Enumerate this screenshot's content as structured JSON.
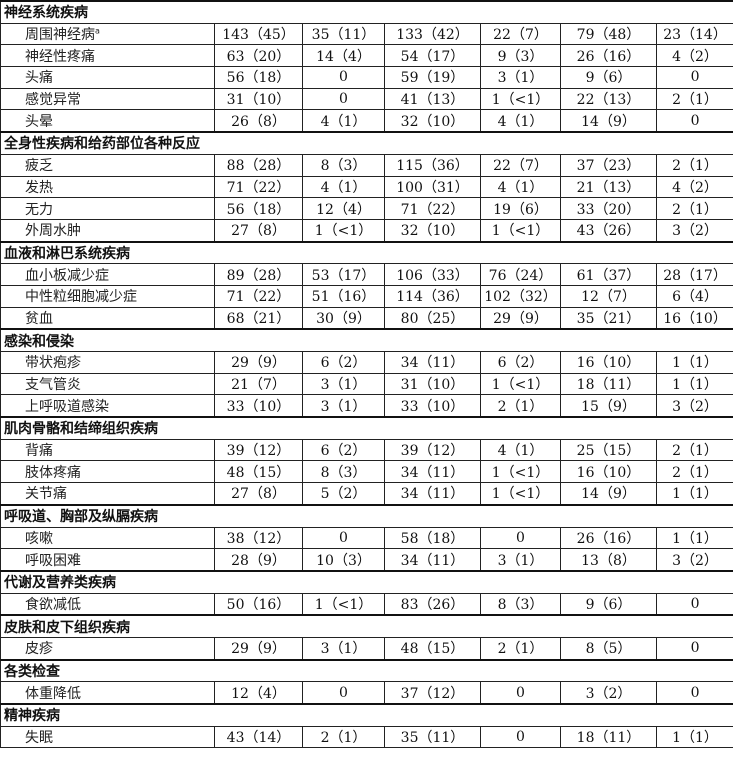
{
  "sections": [
    {
      "title": "神经系统疾病",
      "rows": [
        {
          "label": "周围神经病",
          "footnote": "a",
          "values": [
            "143（45）",
            "35（11）",
            "133（42）",
            "22（7）",
            "79（48）",
            "23（14）"
          ]
        },
        {
          "label": "神经性疼痛",
          "values": [
            "63（20）",
            "14（4）",
            "54（17）",
            "9（3）",
            "26（16）",
            "4（2）"
          ]
        },
        {
          "label": "头痛",
          "values": [
            "56（18）",
            "0",
            "59（19）",
            "3（1）",
            "9（6）",
            "0"
          ]
        },
        {
          "label": "感觉异常",
          "values": [
            "31（10）",
            "0",
            "41（13）",
            "1（<1）",
            "22（13）",
            "2（1）"
          ]
        },
        {
          "label": "头晕",
          "values": [
            "26（8）",
            "4（1）",
            "32（10）",
            "4（1）",
            "14（9）",
            "0"
          ]
        }
      ]
    },
    {
      "title": "全身性疾病和给药部位各种反应",
      "rows": [
        {
          "label": "疲乏",
          "values": [
            "88（28）",
            "8（3）",
            "115（36）",
            "22（7）",
            "37（23）",
            "2（1）"
          ]
        },
        {
          "label": "发热",
          "values": [
            "71（22）",
            "4（1）",
            "100（31）",
            "4（1）",
            "21（13）",
            "4（2）"
          ]
        },
        {
          "label": "无力",
          "values": [
            "56（18）",
            "12（4）",
            "71（22）",
            "19（6）",
            "33（20）",
            "2（1）"
          ]
        },
        {
          "label": "外周水肿",
          "values": [
            "27（8）",
            "1（<1）",
            "32（10）",
            "1（<1）",
            "43（26）",
            "3（2）"
          ]
        }
      ]
    },
    {
      "title": "血液和淋巴系统疾病",
      "rows": [
        {
          "label": "血小板减少症",
          "values": [
            "89（28）",
            "53（17）",
            "106（33）",
            "76（24）",
            "61（37）",
            "28（17）"
          ]
        },
        {
          "label": "中性粒细胞减少症",
          "values": [
            "71（22）",
            "51（16）",
            "114（36）",
            "102（32）",
            "12（7）",
            "6（4）"
          ]
        },
        {
          "label": "贫血",
          "values": [
            "68（21）",
            "30（9）",
            "80（25）",
            "29（9）",
            "35（21）",
            "16（10）"
          ]
        }
      ]
    },
    {
      "title": "感染和侵染",
      "rows": [
        {
          "label": "带状疱疹",
          "values": [
            "29（9）",
            "6（2）",
            "34（11）",
            "6（2）",
            "16（10）",
            "1（1）"
          ]
        },
        {
          "label": "支气管炎",
          "values": [
            "21（7）",
            "3（1）",
            "31（10）",
            "1（<1）",
            "18（11）",
            "1（1）"
          ]
        },
        {
          "label": "上呼吸道感染",
          "values": [
            "33（10）",
            "3（1）",
            "33（10）",
            "2（1）",
            "15（9）",
            "3（2）"
          ]
        }
      ]
    },
    {
      "title": "肌肉骨骼和结缔组织疾病",
      "rows": [
        {
          "label": "背痛",
          "values": [
            "39（12）",
            "6（2）",
            "39（12）",
            "4（1）",
            "25（15）",
            "2（1）"
          ]
        },
        {
          "label": "肢体疼痛",
          "values": [
            "48（15）",
            "8（3）",
            "34（11）",
            "1（<1）",
            "16（10）",
            "2（1）"
          ]
        },
        {
          "label": "关节痛",
          "values": [
            "27（8）",
            "5（2）",
            "34（11）",
            "1（<1）",
            "14（9）",
            "1（1）"
          ]
        }
      ]
    },
    {
      "title": "呼吸道、胸部及纵膈疾病",
      "rows": [
        {
          "label": "咳嗽",
          "values": [
            "38（12）",
            "0",
            "58（18）",
            "0",
            "26（16）",
            "1（1）"
          ]
        },
        {
          "label": "呼吸困难",
          "values": [
            "28（9）",
            "10（3）",
            "34（11）",
            "3（1）",
            "13（8）",
            "3（2）"
          ]
        }
      ]
    },
    {
      "title": "代谢及营养类疾病",
      "rows": [
        {
          "label": "食欲减低",
          "values": [
            "50（16）",
            "1（<1）",
            "83（26）",
            "8（3）",
            "9（6）",
            "0"
          ]
        }
      ]
    },
    {
      "title": "皮肤和皮下组织疾病",
      "rows": [
        {
          "label": "皮疹",
          "values": [
            "29（9）",
            "3（1）",
            "48（15）",
            "2（1）",
            "8（5）",
            "0"
          ]
        }
      ]
    },
    {
      "title": "各类检查",
      "rows": [
        {
          "label": "体重降低",
          "values": [
            "12（4）",
            "0",
            "37（12）",
            "0",
            "3（2）",
            "0"
          ]
        }
      ]
    },
    {
      "title": "精神疾病",
      "rows": [
        {
          "label": "失眠",
          "values": [
            "43（14）",
            "2（1）",
            "35（11）",
            "0",
            "18（11）",
            "1（1）"
          ]
        }
      ]
    }
  ]
}
